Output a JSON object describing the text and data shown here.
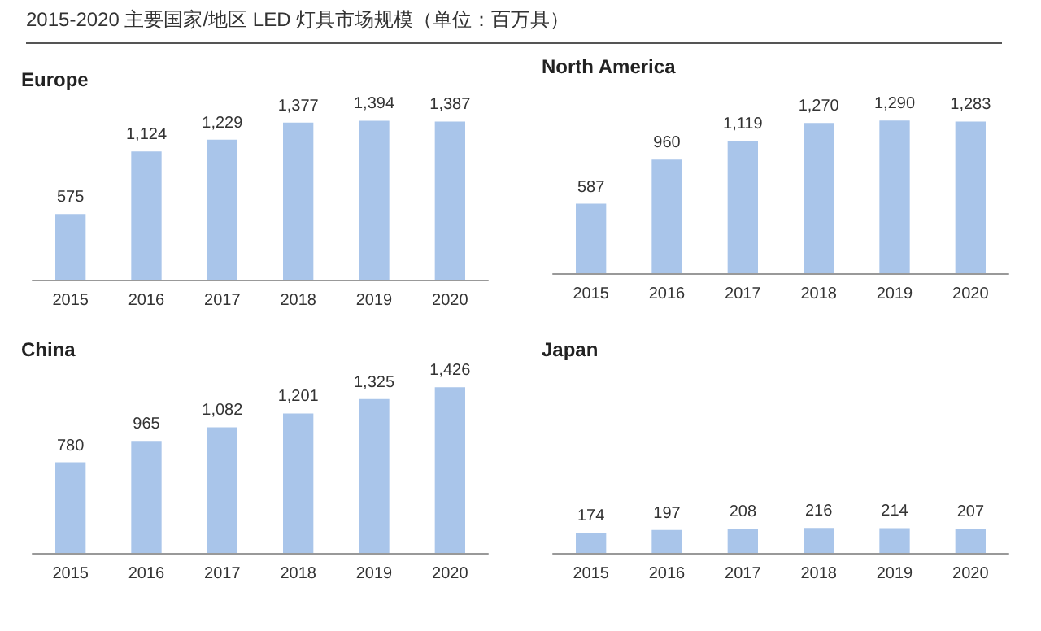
{
  "chart_data": [
    {
      "type": "other",
      "title": "2015-2020 主要国家/地区 LED 灯具市场规模（单位：百万具）"
    },
    {
      "type": "bar",
      "title": "Europe",
      "categories": [
        "2015",
        "2016",
        "2017",
        "2018",
        "2019",
        "2020"
      ],
      "values": [
        575,
        1124,
        1229,
        1377,
        1394,
        1387
      ],
      "value_labels": [
        "575",
        "1,124",
        "1,229",
        "1,377",
        "1,394",
        "1,387"
      ],
      "color": "#a9c5ea"
    },
    {
      "type": "bar",
      "title": "North America",
      "categories": [
        "2015",
        "2016",
        "2017",
        "2018",
        "2019",
        "2020"
      ],
      "values": [
        587,
        960,
        1119,
        1270,
        1290,
        1283
      ],
      "value_labels": [
        "587",
        "960",
        "1,119",
        "1,270",
        "1,290",
        "1,283"
      ],
      "color": "#a9c5ea"
    },
    {
      "type": "bar",
      "title": "China",
      "categories": [
        "2015",
        "2016",
        "2017",
        "2018",
        "2019",
        "2020"
      ],
      "values": [
        780,
        965,
        1082,
        1201,
        1325,
        1426
      ],
      "value_labels": [
        "780",
        "965",
        "1,082",
        "1,201",
        "1,325",
        "1,426"
      ],
      "color": "#a9c5ea"
    },
    {
      "type": "bar",
      "title": "Japan",
      "categories": [
        "2015",
        "2016",
        "2017",
        "2018",
        "2019",
        "2020"
      ],
      "values": [
        174,
        197,
        208,
        216,
        214,
        207
      ],
      "value_labels": [
        "174",
        "197",
        "208",
        "216",
        "214",
        "207"
      ],
      "color": "#a9c5ea"
    }
  ]
}
